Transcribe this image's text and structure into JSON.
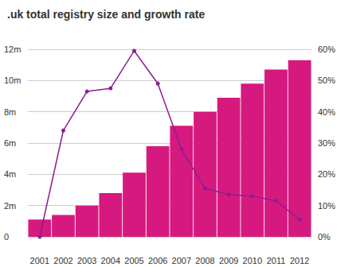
{
  "chart_data": {
    "type": "bar",
    "title": ".uk total registry size and growth rate",
    "categories": [
      "2001",
      "2002",
      "2003",
      "2004",
      "2005",
      "2006",
      "2007",
      "2008",
      "2009",
      "2010",
      "2011",
      "2012"
    ],
    "series": [
      {
        "type": "bar",
        "color": "#d6197f",
        "values": [
          1.1,
          1.4,
          2.0,
          2.8,
          4.1,
          5.8,
          7.1,
          8.0,
          8.9,
          9.8,
          10.7,
          11.3
        ]
      },
      {
        "type": "line",
        "axis": "y2",
        "color": "#8a1f8f",
        "marker": "circle",
        "values": [
          0,
          34,
          46.5,
          47.5,
          59.5,
          49,
          28,
          15.5,
          13.5,
          13,
          11.5,
          5.5
        ]
      }
    ],
    "ylim": [
      0,
      12
    ],
    "yticks": [
      0,
      {
        "value": 2,
        "label": "2m"
      },
      {
        "value": 4,
        "label": "4m"
      },
      {
        "value": 6,
        "label": "6m"
      },
      {
        "value": 8,
        "label": "8m"
      },
      {
        "value": 10,
        "label": "10m"
      },
      {
        "value": 12,
        "label": "12m"
      }
    ],
    "y2lim": [
      0,
      60
    ],
    "y2ticks": [
      {
        "value": 0,
        "label": "0%"
      },
      {
        "value": 10,
        "label": "10%"
      },
      {
        "value": 20,
        "label": "20%"
      },
      {
        "value": 30,
        "label": "30%"
      },
      {
        "value": 40,
        "label": "40%"
      },
      {
        "value": 50,
        "label": "50%"
      },
      {
        "value": 60,
        "label": "60%"
      }
    ],
    "grid": true
  }
}
